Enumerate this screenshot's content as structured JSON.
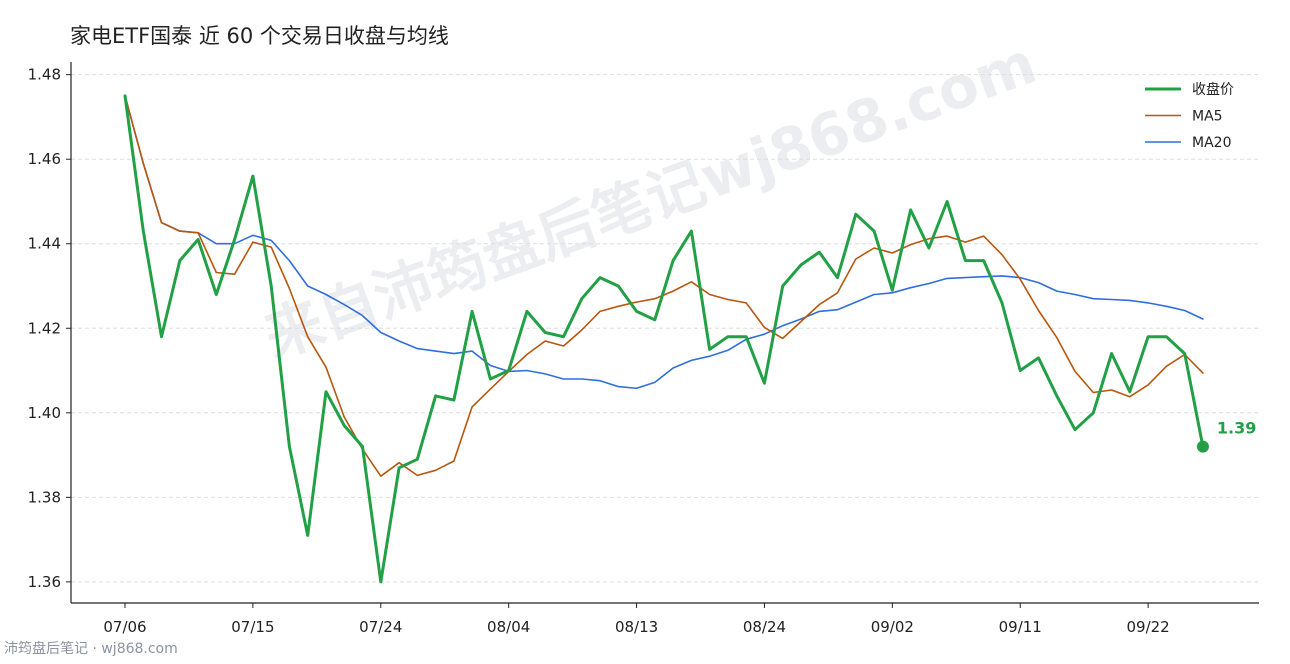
{
  "chart_data": {
    "type": "line",
    "title": "家电ETF国泰 近 60 个交易日收盘与均线",
    "ylim": [
      1.355,
      1.483
    ],
    "yticks": [
      "1.36",
      "1.38",
      "1.40",
      "1.42",
      "1.44",
      "1.46",
      "1.48"
    ],
    "ytick_values": [
      1.36,
      1.38,
      1.4,
      1.42,
      1.44,
      1.46,
      1.48
    ],
    "xticks": [
      {
        "i": 0,
        "label": "07/06"
      },
      {
        "i": 7,
        "label": "07/15"
      },
      {
        "i": 14,
        "label": "07/24"
      },
      {
        "i": 21,
        "label": "08/04"
      },
      {
        "i": 28,
        "label": "08/13"
      },
      {
        "i": 35,
        "label": "08/24"
      },
      {
        "i": 42,
        "label": "09/02"
      },
      {
        "i": 49,
        "label": "09/11"
      },
      {
        "i": 56,
        "label": "09/22"
      }
    ],
    "grid": "y",
    "legend_position": "top-right",
    "series": [
      {
        "name": "收盘价",
        "color": "#22a046",
        "values": [
          1.475,
          1.443,
          1.418,
          1.436,
          1.441,
          1.428,
          1.441,
          1.456,
          1.43,
          1.392,
          1.371,
          1.405,
          1.397,
          1.392,
          1.36,
          1.387,
          1.389,
          1.404,
          1.403,
          1.424,
          1.408,
          1.41,
          1.424,
          1.419,
          1.418,
          1.427,
          1.432,
          1.43,
          1.424,
          1.422,
          1.436,
          1.443,
          1.415,
          1.418,
          1.418,
          1.407,
          1.43,
          1.435,
          1.438,
          1.432,
          1.447,
          1.443,
          1.429,
          1.448,
          1.439,
          1.45,
          1.436,
          1.436,
          1.426,
          1.41,
          1.413,
          1.404,
          1.396,
          1.4,
          1.414,
          1.405,
          1.418,
          1.418,
          1.414,
          1.392
        ]
      },
      {
        "name": "MA5",
        "color": "#b8570e",
        "values": [
          1.475,
          1.459,
          1.445,
          1.443,
          1.4426,
          1.4332,
          1.4328,
          1.4404,
          1.4392,
          1.4294,
          1.418,
          1.4108,
          1.399,
          1.3914,
          1.385,
          1.3882,
          1.3852,
          1.3864,
          1.3886,
          1.4014,
          1.4056,
          1.4098,
          1.4138,
          1.417,
          1.4158,
          1.4196,
          1.424,
          1.4252,
          1.4262,
          1.427,
          1.4288,
          1.431,
          1.428,
          1.4268,
          1.426,
          1.4202,
          1.4176,
          1.4216,
          1.4256,
          1.4284,
          1.4364,
          1.439,
          1.4378,
          1.4398,
          1.4412,
          1.4418,
          1.4404,
          1.4418,
          1.4374,
          1.4316,
          1.4242,
          1.4178,
          1.4098,
          1.4048,
          1.4054,
          1.4038,
          1.4066,
          1.411,
          1.4138,
          1.4094
        ]
      },
      {
        "name": "MA20",
        "color": "#2f6fdb",
        "values": [
          1.475,
          1.459,
          1.445,
          1.443,
          1.4426,
          1.44,
          1.44,
          1.442,
          1.4408,
          1.436,
          1.43,
          1.428,
          1.4256,
          1.423,
          1.419,
          1.417,
          1.4152,
          1.4146,
          1.414,
          1.4146,
          1.4112,
          1.4098,
          1.41,
          1.4092,
          1.408,
          1.408,
          1.4076,
          1.4062,
          1.4058,
          1.4072,
          1.4106,
          1.4124,
          1.4134,
          1.4148,
          1.4174,
          1.4186,
          1.4206,
          1.4222,
          1.424,
          1.4244,
          1.4262,
          1.428,
          1.4284,
          1.4296,
          1.4306,
          1.4318,
          1.432,
          1.4322,
          1.4324,
          1.432,
          1.4308,
          1.4288,
          1.428,
          1.427,
          1.4268,
          1.4266,
          1.426,
          1.4252,
          1.4242,
          1.4222
        ]
      }
    ],
    "last_value_label": "1.39"
  },
  "watermark": {
    "text": "来自沛筠盘后笔记wj868.com",
    "footer": "沛筠盘后笔记 · wj868.com"
  }
}
